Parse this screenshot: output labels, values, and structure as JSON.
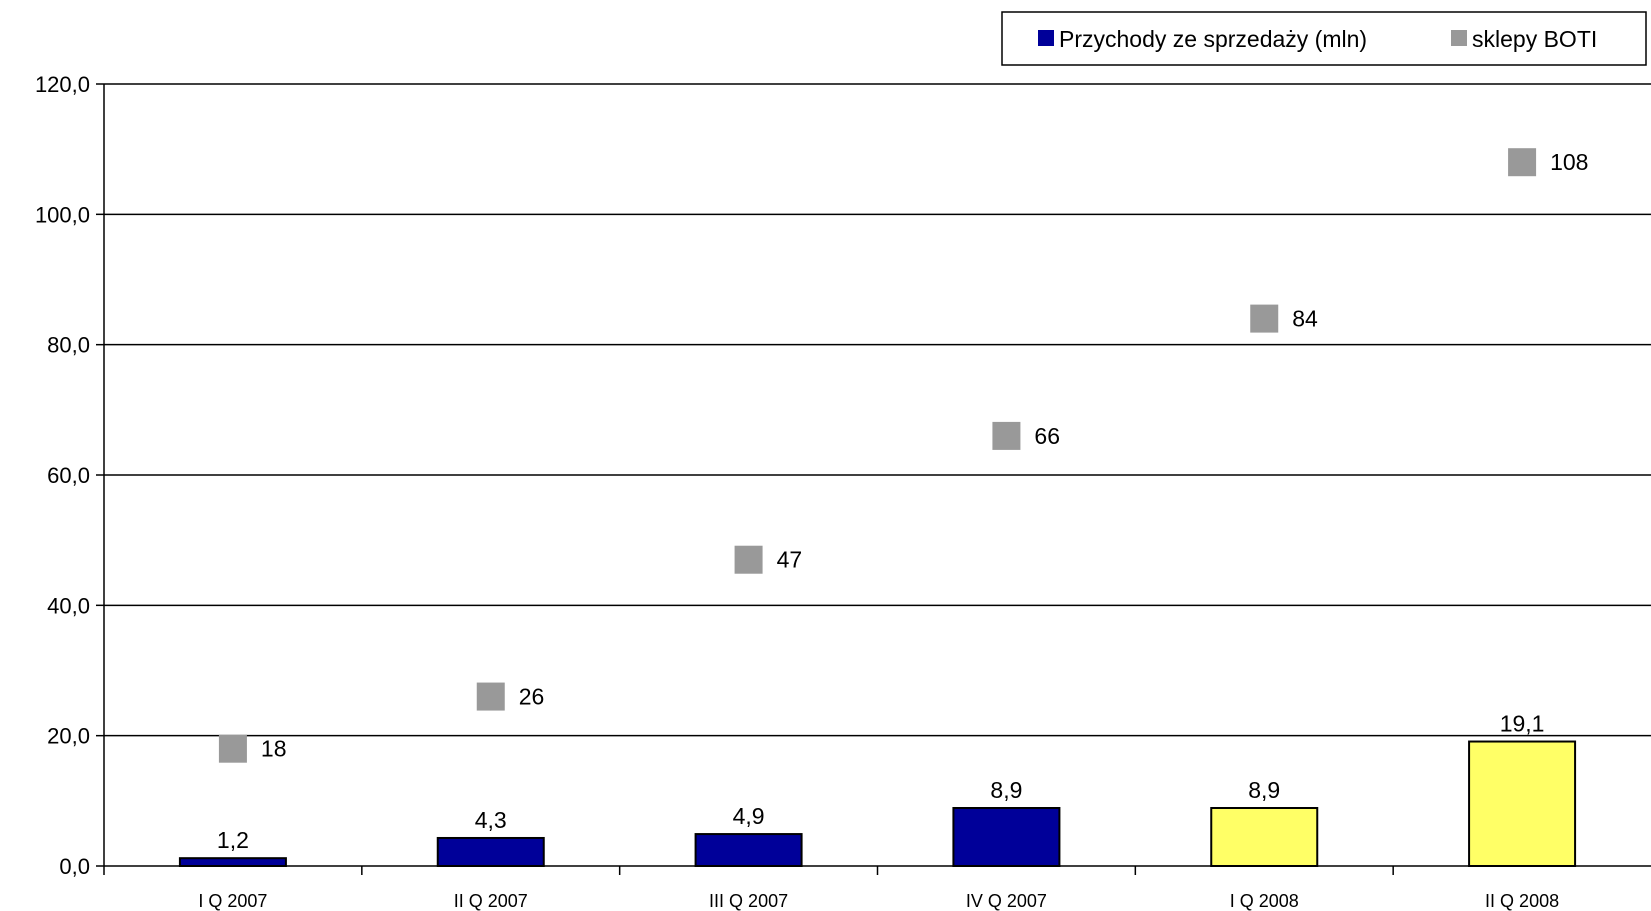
{
  "chart_data": {
    "type": "bar",
    "categories": [
      "I Q 2007",
      "II Q 2007",
      "III Q 2007",
      "IV Q 2007",
      "I Q 2008",
      "II Q 2008"
    ],
    "ylim": [
      0,
      120
    ],
    "yticks": [
      0,
      20,
      40,
      60,
      80,
      100,
      120
    ],
    "ytick_labels": [
      "0,0",
      "20,0",
      "40,0",
      "60,0",
      "80,0",
      "100,0",
      "120,0"
    ],
    "grid": true,
    "legend_position": "top-right",
    "series": [
      {
        "name": "Przychody ze sprzedaży (mln)",
        "kind": "bar",
        "values": [
          1.2,
          4.3,
          4.9,
          8.9,
          8.9,
          19.1
        ],
        "labels": [
          "1,2",
          "4,3",
          "4,9",
          "8,9",
          "8,9",
          "19,1"
        ],
        "color": "#000099",
        "bar_colors": [
          "#000099",
          "#000099",
          "#000099",
          "#000099",
          "#FFFF66",
          "#FFFF66"
        ]
      },
      {
        "name": "sklepy BOTI",
        "kind": "scatter",
        "values": [
          18,
          26,
          47,
          66,
          84,
          108
        ],
        "labels": [
          "18",
          "26",
          "47",
          "66",
          "84",
          "108"
        ],
        "color": "#999999"
      }
    ]
  }
}
